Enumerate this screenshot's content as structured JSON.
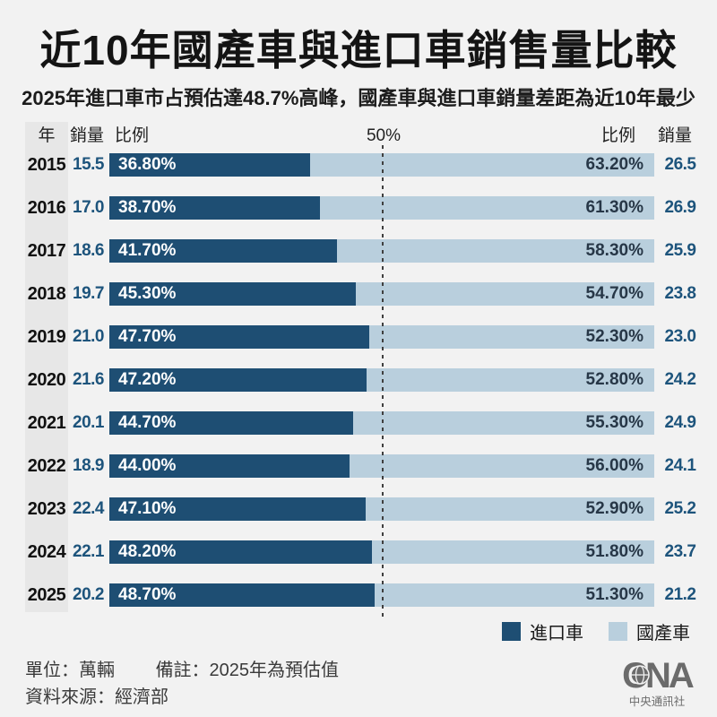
{
  "title": "近10年國產車與進口車銷售量比較",
  "subtitle": "2025年進口車市占預估達48.7%高峰，國產車與進口車銷量差距為近10年最少",
  "table_header": {
    "year": "年",
    "sales_left": "銷量",
    "ratio_left": "比例",
    "center_mark": "50%",
    "ratio_right": "比例",
    "sales_right": "銷量"
  },
  "chart_data": {
    "type": "bar",
    "subtype": "horizontal-100pct-stacked",
    "title": "近10年國產車與進口車銷售量比較",
    "unit": "萬輛",
    "center_reference_line": "50%",
    "series": [
      {
        "name": "進口車",
        "color": "#1e4e73"
      },
      {
        "name": "國產車",
        "color": "#b9cfdd"
      }
    ],
    "rows": [
      {
        "year": "2015",
        "import_sales": "15.5",
        "import_pct_label": "36.80%",
        "import_pct": 36.8,
        "domestic_pct_label": "63.20%",
        "domestic_pct": 63.2,
        "domestic_sales": "26.5"
      },
      {
        "year": "2016",
        "import_sales": "17.0",
        "import_pct_label": "38.70%",
        "import_pct": 38.7,
        "domestic_pct_label": "61.30%",
        "domestic_pct": 61.3,
        "domestic_sales": "26.9"
      },
      {
        "year": "2017",
        "import_sales": "18.6",
        "import_pct_label": "41.70%",
        "import_pct": 41.7,
        "domestic_pct_label": "58.30%",
        "domestic_pct": 58.3,
        "domestic_sales": "25.9"
      },
      {
        "year": "2018",
        "import_sales": "19.7",
        "import_pct_label": "45.30%",
        "import_pct": 45.3,
        "domestic_pct_label": "54.70%",
        "domestic_pct": 54.7,
        "domestic_sales": "23.8"
      },
      {
        "year": "2019",
        "import_sales": "21.0",
        "import_pct_label": "47.70%",
        "import_pct": 47.7,
        "domestic_pct_label": "52.30%",
        "domestic_pct": 52.3,
        "domestic_sales": "23.0"
      },
      {
        "year": "2020",
        "import_sales": "21.6",
        "import_pct_label": "47.20%",
        "import_pct": 47.2,
        "domestic_pct_label": "52.80%",
        "domestic_pct": 52.8,
        "domestic_sales": "24.2"
      },
      {
        "year": "2021",
        "import_sales": "20.1",
        "import_pct_label": "44.70%",
        "import_pct": 44.7,
        "domestic_pct_label": "55.30%",
        "domestic_pct": 55.3,
        "domestic_sales": "24.9"
      },
      {
        "year": "2022",
        "import_sales": "18.9",
        "import_pct_label": "44.00%",
        "import_pct": 44.0,
        "domestic_pct_label": "56.00%",
        "domestic_pct": 56.0,
        "domestic_sales": "24.1"
      },
      {
        "year": "2023",
        "import_sales": "22.4",
        "import_pct_label": "47.10%",
        "import_pct": 47.1,
        "domestic_pct_label": "52.90%",
        "domestic_pct": 52.9,
        "domestic_sales": "25.2"
      },
      {
        "year": "2024",
        "import_sales": "22.1",
        "import_pct_label": "48.20%",
        "import_pct": 48.2,
        "domestic_pct_label": "51.80%",
        "domestic_pct": 51.8,
        "domestic_sales": "23.7"
      },
      {
        "year": "2025",
        "import_sales": "20.2",
        "import_pct_label": "48.70%",
        "import_pct": 48.7,
        "domestic_pct_label": "51.30%",
        "domestic_pct": 51.3,
        "domestic_sales": "21.2"
      }
    ]
  },
  "legend": [
    {
      "label": "進口車",
      "color": "#1e4e73"
    },
    {
      "label": "國產車",
      "color": "#b9cfdd"
    }
  ],
  "footer": {
    "unit": "單位：萬輛",
    "note": "備註：2025年為預估值",
    "source": "資料來源：經濟部"
  },
  "logo": {
    "brand": "CNA",
    "name": "中央通訊社"
  },
  "colors": {
    "import": "#1e4e73",
    "domestic": "#b9cfdd",
    "background": "#f2f2f2",
    "value_text": "#1d547c",
    "year_strip": "#e7e7e7"
  }
}
